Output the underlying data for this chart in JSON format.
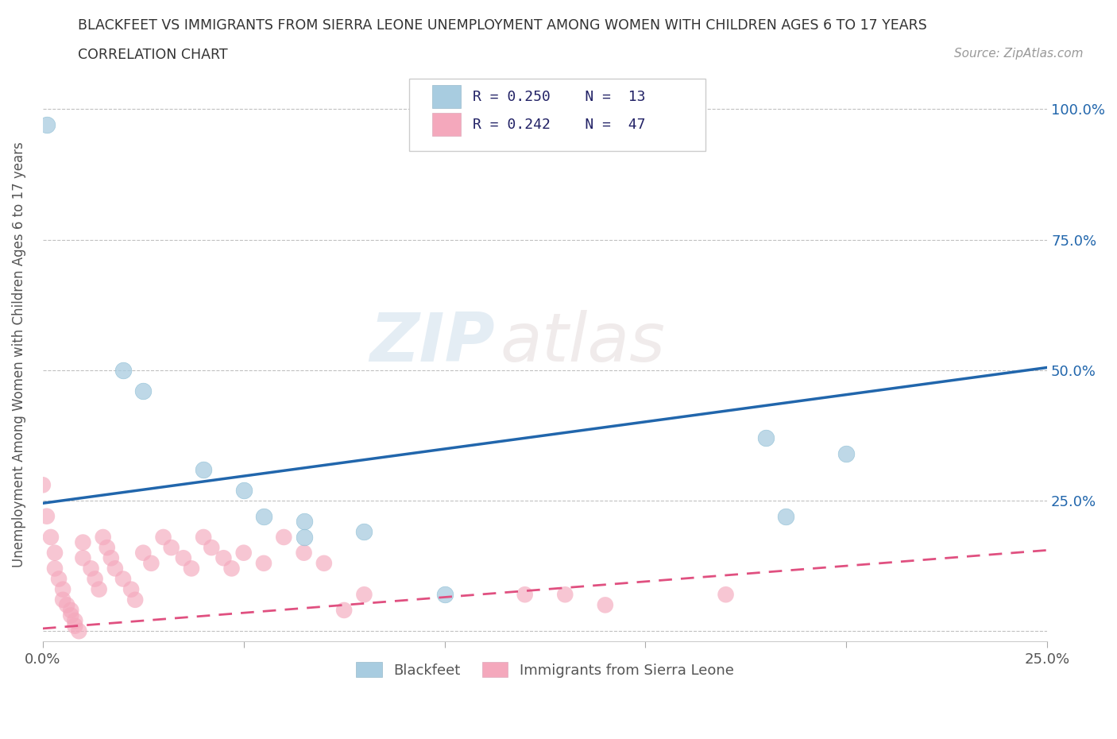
{
  "title_line1": "BLACKFEET VS IMMIGRANTS FROM SIERRA LEONE UNEMPLOYMENT AMONG WOMEN WITH CHILDREN AGES 6 TO 17 YEARS",
  "title_line2": "CORRELATION CHART",
  "source_text": "Source: ZipAtlas.com",
  "ylabel": "Unemployment Among Women with Children Ages 6 to 17 years",
  "xlim": [
    0.0,
    0.25
  ],
  "ylim": [
    -0.02,
    1.08
  ],
  "x_ticks": [
    0.0,
    0.05,
    0.1,
    0.15,
    0.2,
    0.25
  ],
  "x_tick_labels": [
    "0.0%",
    "",
    "",
    "",
    "",
    "25.0%"
  ],
  "y_ticks": [
    0.0,
    0.25,
    0.5,
    0.75,
    1.0
  ],
  "y_tick_labels": [
    "",
    "25.0%",
    "50.0%",
    "75.0%",
    "100.0%"
  ],
  "watermark_zip": "ZIP",
  "watermark_atlas": "atlas",
  "legend_r1": "R = 0.250",
  "legend_n1": "N = 13",
  "legend_r2": "R = 0.242",
  "legend_n2": "N = 47",
  "blue_color": "#a8cce0",
  "pink_color": "#f4a8bc",
  "blue_marker_edge": "#7baed0",
  "pink_marker_edge": "#f090a8",
  "blue_line_color": "#2166ac",
  "pink_line_color": "#e05080",
  "blue_scatter": [
    [
      0.001,
      0.97
    ],
    [
      0.02,
      0.5
    ],
    [
      0.025,
      0.46
    ],
    [
      0.04,
      0.31
    ],
    [
      0.05,
      0.27
    ],
    [
      0.055,
      0.22
    ],
    [
      0.065,
      0.21
    ],
    [
      0.065,
      0.18
    ],
    [
      0.08,
      0.19
    ],
    [
      0.1,
      0.07
    ],
    [
      0.18,
      0.37
    ],
    [
      0.185,
      0.22
    ],
    [
      0.2,
      0.34
    ]
  ],
  "pink_scatter": [
    [
      0.0,
      0.28
    ],
    [
      0.001,
      0.22
    ],
    [
      0.002,
      0.18
    ],
    [
      0.003,
      0.15
    ],
    [
      0.003,
      0.12
    ],
    [
      0.004,
      0.1
    ],
    [
      0.005,
      0.08
    ],
    [
      0.005,
      0.06
    ],
    [
      0.006,
      0.05
    ],
    [
      0.007,
      0.04
    ],
    [
      0.007,
      0.03
    ],
    [
      0.008,
      0.02
    ],
    [
      0.008,
      0.01
    ],
    [
      0.009,
      0.0
    ],
    [
      0.01,
      0.17
    ],
    [
      0.01,
      0.14
    ],
    [
      0.012,
      0.12
    ],
    [
      0.013,
      0.1
    ],
    [
      0.014,
      0.08
    ],
    [
      0.015,
      0.18
    ],
    [
      0.016,
      0.16
    ],
    [
      0.017,
      0.14
    ],
    [
      0.018,
      0.12
    ],
    [
      0.02,
      0.1
    ],
    [
      0.022,
      0.08
    ],
    [
      0.023,
      0.06
    ],
    [
      0.025,
      0.15
    ],
    [
      0.027,
      0.13
    ],
    [
      0.03,
      0.18
    ],
    [
      0.032,
      0.16
    ],
    [
      0.035,
      0.14
    ],
    [
      0.037,
      0.12
    ],
    [
      0.04,
      0.18
    ],
    [
      0.042,
      0.16
    ],
    [
      0.045,
      0.14
    ],
    [
      0.047,
      0.12
    ],
    [
      0.05,
      0.15
    ],
    [
      0.055,
      0.13
    ],
    [
      0.06,
      0.18
    ],
    [
      0.065,
      0.15
    ],
    [
      0.07,
      0.13
    ],
    [
      0.075,
      0.04
    ],
    [
      0.08,
      0.07
    ],
    [
      0.12,
      0.07
    ],
    [
      0.13,
      0.07
    ],
    [
      0.14,
      0.05
    ],
    [
      0.17,
      0.07
    ]
  ],
  "blue_trend": [
    0.0,
    0.245,
    0.25,
    0.505
  ],
  "pink_trend": [
    0.0,
    0.005,
    0.25,
    0.155
  ],
  "legend_label_blue": "Blackfeet",
  "legend_label_pink": "Immigrants from Sierra Leone"
}
